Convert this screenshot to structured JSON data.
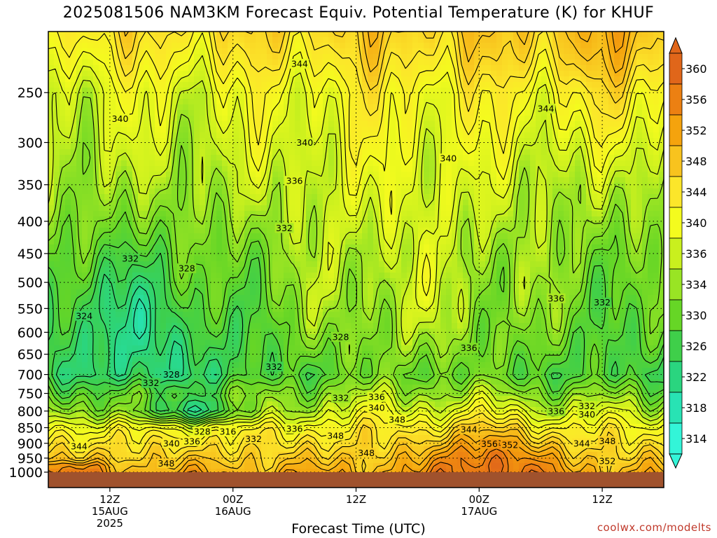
{
  "title": "2025081506 NAM3KM Forecast Equiv. Potential Temperature (K) for KHUF",
  "xlabel": "Forecast Time (UTC)",
  "credit": "coolwx.com/modelts",
  "chart_data": {
    "type": "heatmap",
    "variable": "Equivalent Potential Temperature (K)",
    "y_axis": {
      "levels_hPa": [
        250,
        300,
        350,
        400,
        450,
        500,
        550,
        600,
        650,
        700,
        750,
        800,
        850,
        900,
        950,
        1000
      ],
      "top_hPa": 200,
      "bottom_hPa": 1000,
      "scale": "log-pressure (inverted)",
      "gridlines": "dotted"
    },
    "x_axis": {
      "hours_range": [
        0,
        60
      ],
      "ticks": [
        {
          "hour": 6,
          "lines": [
            "12Z",
            "15AUG",
            "2025"
          ]
        },
        {
          "hour": 18,
          "lines": [
            "00Z",
            "16AUG"
          ]
        },
        {
          "hour": 30,
          "lines": [
            "12Z"
          ]
        },
        {
          "hour": 42,
          "lines": [
            "00Z",
            "17AUG"
          ]
        },
        {
          "hour": 54,
          "lines": [
            "12Z"
          ]
        }
      ]
    },
    "colorbar": {
      "labels": [
        360,
        356,
        352,
        348,
        344,
        340,
        336,
        334,
        330,
        326,
        322,
        318,
        314
      ],
      "colors": [
        "#e0661a",
        "#ec8012",
        "#f5a30d",
        "#f8c31e",
        "#fce62a",
        "#f4fb1e",
        "#c9f01e",
        "#99e424",
        "#66d626",
        "#3fcf4a",
        "#2ad57f",
        "#28e3b4",
        "#33f5d8"
      ]
    },
    "contour_labels": [
      {
        "value": 344,
        "hour": 24.5,
        "hPa": 225
      },
      {
        "value": 344,
        "hour": 48.5,
        "hPa": 265
      },
      {
        "value": 340,
        "hour": 7,
        "hPa": 275
      },
      {
        "value": 340,
        "hour": 25,
        "hPa": 300
      },
      {
        "value": 340,
        "hour": 39,
        "hPa": 318
      },
      {
        "value": 336,
        "hour": 24,
        "hPa": 345
      },
      {
        "value": 332,
        "hour": 23,
        "hPa": 410
      },
      {
        "value": 332,
        "hour": 8,
        "hPa": 458
      },
      {
        "value": 332,
        "hour": 54,
        "hPa": 538
      },
      {
        "value": 336,
        "hour": 49.5,
        "hPa": 530
      },
      {
        "value": 328,
        "hour": 13.5,
        "hPa": 475
      },
      {
        "value": 324,
        "hour": 3.5,
        "hPa": 565
      },
      {
        "value": 328,
        "hour": 28.5,
        "hPa": 610
      },
      {
        "value": 336,
        "hour": 41,
        "hPa": 635
      },
      {
        "value": 332,
        "hour": 22,
        "hPa": 680
      },
      {
        "value": 328,
        "hour": 12,
        "hPa": 700
      },
      {
        "value": 332,
        "hour": 10,
        "hPa": 722
      },
      {
        "value": 332,
        "hour": 28.5,
        "hPa": 762
      },
      {
        "value": 336,
        "hour": 32,
        "hPa": 760
      },
      {
        "value": 340,
        "hour": 32,
        "hPa": 790
      },
      {
        "value": 348,
        "hour": 34,
        "hPa": 825
      },
      {
        "value": 336,
        "hour": 49.5,
        "hPa": 800
      },
      {
        "value": 332,
        "hour": 52.5,
        "hPa": 785
      },
      {
        "value": 340,
        "hour": 52.5,
        "hPa": 810
      },
      {
        "value": 336,
        "hour": 24,
        "hPa": 853
      },
      {
        "value": 328,
        "hour": 15,
        "hPa": 862
      },
      {
        "value": 316,
        "hour": 17.5,
        "hPa": 862
      },
      {
        "value": 332,
        "hour": 20,
        "hPa": 885
      },
      {
        "value": 340,
        "hour": 12,
        "hPa": 900
      },
      {
        "value": 336,
        "hour": 14,
        "hPa": 893
      },
      {
        "value": 348,
        "hour": 28,
        "hPa": 875
      },
      {
        "value": 344,
        "hour": 41,
        "hPa": 855
      },
      {
        "value": 344,
        "hour": 52,
        "hPa": 900
      },
      {
        "value": 348,
        "hour": 54.5,
        "hPa": 892
      },
      {
        "value": 356,
        "hour": 43,
        "hPa": 902
      },
      {
        "value": 352,
        "hour": 45,
        "hPa": 905
      },
      {
        "value": 348,
        "hour": 31,
        "hPa": 932
      },
      {
        "value": 344,
        "hour": 3,
        "hPa": 910
      },
      {
        "value": 348,
        "hour": 11.5,
        "hPa": 968
      },
      {
        "value": 352,
        "hour": 54.5,
        "hPa": 960
      }
    ]
  }
}
